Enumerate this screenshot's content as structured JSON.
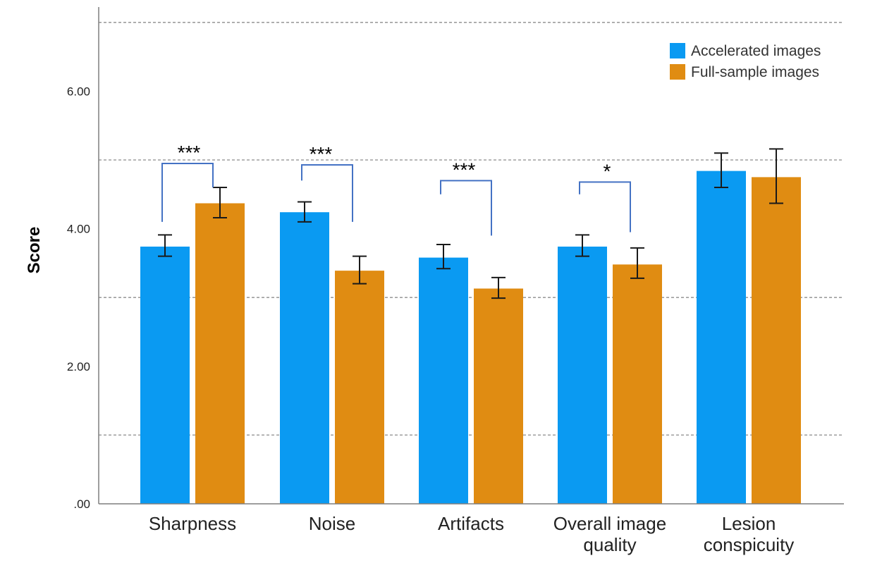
{
  "chart_data": {
    "type": "bar",
    "title": "",
    "xlabel": "",
    "ylabel": "Score",
    "ylim": [
      0,
      7
    ],
    "yticks": [
      {
        "value": 0,
        "label": ".00"
      },
      {
        "value": 2,
        "label": "2.00"
      },
      {
        "value": 4,
        "label": "4.00"
      },
      {
        "value": 6,
        "label": "6.00"
      }
    ],
    "grid": {
      "dashed_horizontal_at": [
        1,
        3,
        5,
        7
      ]
    },
    "legend_position": "top-right",
    "categories": [
      [
        "Sharpness"
      ],
      [
        "Noise"
      ],
      [
        "Artifacts"
      ],
      [
        "Overall image",
        "quality"
      ],
      [
        "Lesion",
        "conspicuity"
      ]
    ],
    "series": [
      {
        "name": "Accelerated images",
        "color": "#0a9af2",
        "values": [
          3.74,
          4.24,
          3.58,
          3.74,
          4.84
        ],
        "error_low": [
          3.6,
          4.1,
          3.42,
          3.6,
          4.6
        ],
        "error_high": [
          3.91,
          4.39,
          3.77,
          3.91,
          5.1
        ]
      },
      {
        "name": "Full-sample images",
        "color": "#e08c12",
        "values": [
          4.37,
          3.39,
          3.13,
          3.48,
          4.75
        ],
        "error_low": [
          4.16,
          3.2,
          2.99,
          3.28,
          4.37
        ],
        "error_high": [
          4.6,
          3.6,
          3.29,
          3.72,
          5.16
        ]
      }
    ],
    "annotations": [
      {
        "category": 0,
        "label": "***",
        "bracket_left": 4.1,
        "bracket_right": 4.6,
        "bracket_top": 5.0
      },
      {
        "category": 1,
        "label": "***",
        "bracket_left": 4.7,
        "bracket_right": 4.1,
        "bracket_top": 4.98
      },
      {
        "category": 2,
        "label": "***",
        "bracket_left": 4.5,
        "bracket_right": 3.9,
        "bracket_top": 4.75
      },
      {
        "category": 3,
        "label": "*",
        "bracket_left": 4.5,
        "bracket_right": 3.95,
        "bracket_top": 4.73
      }
    ],
    "bracket_color": "#4472c4"
  }
}
